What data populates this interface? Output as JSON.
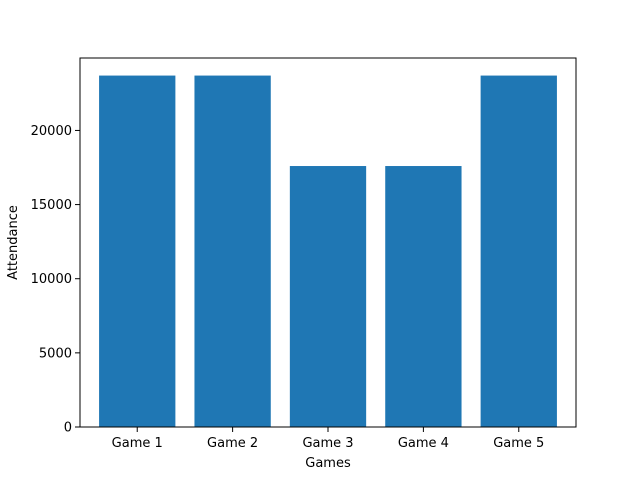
{
  "chart_data": {
    "type": "bar",
    "title": "",
    "xlabel": "Games",
    "ylabel": "Attendance",
    "categories": [
      "Game 1",
      "Game 2",
      "Game 3",
      "Game 4",
      "Game 5"
    ],
    "values": [
      23700,
      23700,
      17600,
      17600,
      23700
    ],
    "ylim": [
      0,
      24885
    ],
    "yticks": [
      0,
      5000,
      10000,
      15000,
      20000
    ],
    "ytick_labels": [
      "0",
      "5000",
      "10000",
      "15000",
      "20000"
    ],
    "grid": false,
    "legend": "none",
    "bar_color": "#1f77b4"
  }
}
